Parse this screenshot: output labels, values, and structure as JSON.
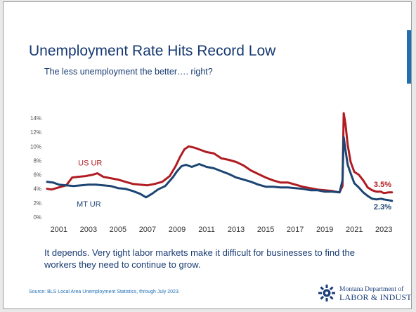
{
  "slide": {
    "title": "Unemployment Rate Hits Record Low",
    "subtitle": "The less unemployment the better…. right?",
    "body_text": "It depends. Very tight labor markets make it difficult for businesses to find the workers they need to continue to grow.",
    "source": "Source: BLS Local Area Unemployment Statistics, through July 2023.",
    "logo_line1": "Montana Department of",
    "logo_line2": "LABOR & INDUSTRY",
    "logo_icon": "gear-sunburst-icon",
    "colors": {
      "title": "#173a72",
      "accent": "#1f6fb5",
      "us_series": "#b01c22",
      "mt_series": "#1d4573"
    }
  },
  "chart_data": {
    "type": "line",
    "title": "",
    "xlabel": "",
    "ylabel": "",
    "xlim": [
      2000.2,
      2023.7
    ],
    "ylim": [
      0,
      15
    ],
    "y_ticks": [
      0,
      2,
      4,
      6,
      8,
      10,
      12,
      14
    ],
    "y_tick_labels": [
      "0%",
      "2%",
      "4%",
      "6%",
      "8%",
      "10%",
      "12%",
      "14%"
    ],
    "x_ticks": [
      2001,
      2003,
      2005,
      2007,
      2009,
      2011,
      2013,
      2015,
      2017,
      2019,
      2021,
      2023
    ],
    "x_tick_labels": [
      "2001",
      "2003",
      "2005",
      "2007",
      "2009",
      "2011",
      "2013",
      "2015",
      "2017",
      "2019",
      "2021",
      "2023"
    ],
    "grid": false,
    "series": [
      {
        "name": "US UR",
        "color": "#b01c22",
        "end_label": "3.5%",
        "points": [
          [
            2000.2,
            4.0
          ],
          [
            2000.5,
            3.9
          ],
          [
            2001.0,
            4.2
          ],
          [
            2001.5,
            4.5
          ],
          [
            2001.9,
            5.6
          ],
          [
            2002.3,
            5.7
          ],
          [
            2002.8,
            5.8
          ],
          [
            2003.3,
            6.0
          ],
          [
            2003.6,
            6.2
          ],
          [
            2004.0,
            5.7
          ],
          [
            2004.5,
            5.5
          ],
          [
            2005.0,
            5.3
          ],
          [
            2005.5,
            5.0
          ],
          [
            2006.0,
            4.7
          ],
          [
            2006.5,
            4.6
          ],
          [
            2007.0,
            4.5
          ],
          [
            2007.5,
            4.7
          ],
          [
            2008.0,
            5.0
          ],
          [
            2008.5,
            5.8
          ],
          [
            2008.9,
            7.2
          ],
          [
            2009.2,
            8.5
          ],
          [
            2009.5,
            9.6
          ],
          [
            2009.8,
            10.0
          ],
          [
            2010.2,
            9.8
          ],
          [
            2010.6,
            9.5
          ],
          [
            2011.0,
            9.2
          ],
          [
            2011.5,
            9.0
          ],
          [
            2012.0,
            8.3
          ],
          [
            2012.5,
            8.1
          ],
          [
            2013.0,
            7.8
          ],
          [
            2013.5,
            7.3
          ],
          [
            2014.0,
            6.6
          ],
          [
            2014.5,
            6.1
          ],
          [
            2015.0,
            5.6
          ],
          [
            2015.5,
            5.2
          ],
          [
            2016.0,
            4.9
          ],
          [
            2016.5,
            4.9
          ],
          [
            2017.0,
            4.6
          ],
          [
            2017.5,
            4.3
          ],
          [
            2018.0,
            4.1
          ],
          [
            2018.5,
            3.9
          ],
          [
            2019.0,
            3.8
          ],
          [
            2019.5,
            3.7
          ],
          [
            2020.0,
            3.5
          ],
          [
            2020.2,
            4.4
          ],
          [
            2020.28,
            14.7
          ],
          [
            2020.4,
            13.2
          ],
          [
            2020.55,
            10.2
          ],
          [
            2020.75,
            7.8
          ],
          [
            2021.0,
            6.4
          ],
          [
            2021.3,
            6.0
          ],
          [
            2021.6,
            5.2
          ],
          [
            2021.9,
            4.2
          ],
          [
            2022.2,
            3.8
          ],
          [
            2022.5,
            3.6
          ],
          [
            2022.8,
            3.6
          ],
          [
            2023.0,
            3.4
          ],
          [
            2023.3,
            3.5
          ],
          [
            2023.55,
            3.5
          ]
        ]
      },
      {
        "name": "MT UR",
        "color": "#1d4573",
        "end_label": "2.3%",
        "points": [
          [
            2000.2,
            5.0
          ],
          [
            2000.6,
            4.9
          ],
          [
            2001.0,
            4.6
          ],
          [
            2001.5,
            4.5
          ],
          [
            2002.0,
            4.4
          ],
          [
            2002.5,
            4.5
          ],
          [
            2003.0,
            4.6
          ],
          [
            2003.5,
            4.6
          ],
          [
            2004.0,
            4.5
          ],
          [
            2004.5,
            4.4
          ],
          [
            2005.0,
            4.1
          ],
          [
            2005.5,
            4.0
          ],
          [
            2006.0,
            3.7
          ],
          [
            2006.5,
            3.3
          ],
          [
            2006.9,
            2.8
          ],
          [
            2007.3,
            3.3
          ],
          [
            2007.7,
            3.9
          ],
          [
            2008.2,
            4.4
          ],
          [
            2008.7,
            5.6
          ],
          [
            2009.0,
            6.5
          ],
          [
            2009.3,
            7.2
          ],
          [
            2009.6,
            7.4
          ],
          [
            2010.0,
            7.1
          ],
          [
            2010.5,
            7.5
          ],
          [
            2011.0,
            7.1
          ],
          [
            2011.5,
            6.9
          ],
          [
            2012.0,
            6.5
          ],
          [
            2012.5,
            6.1
          ],
          [
            2013.0,
            5.6
          ],
          [
            2013.5,
            5.3
          ],
          [
            2014.0,
            5.0
          ],
          [
            2014.5,
            4.6
          ],
          [
            2015.0,
            4.3
          ],
          [
            2015.5,
            4.3
          ],
          [
            2016.0,
            4.2
          ],
          [
            2016.5,
            4.2
          ],
          [
            2017.0,
            4.1
          ],
          [
            2017.5,
            4.0
          ],
          [
            2018.0,
            3.8
          ],
          [
            2018.5,
            3.8
          ],
          [
            2019.0,
            3.6
          ],
          [
            2019.5,
            3.6
          ],
          [
            2020.0,
            3.5
          ],
          [
            2020.2,
            5.2
          ],
          [
            2020.28,
            11.3
          ],
          [
            2020.4,
            9.5
          ],
          [
            2020.55,
            7.4
          ],
          [
            2020.75,
            6.2
          ],
          [
            2021.0,
            4.8
          ],
          [
            2021.3,
            4.2
          ],
          [
            2021.6,
            3.5
          ],
          [
            2021.9,
            3.0
          ],
          [
            2022.2,
            2.6
          ],
          [
            2022.5,
            2.5
          ],
          [
            2022.8,
            2.6
          ],
          [
            2023.0,
            2.5
          ],
          [
            2023.3,
            2.4
          ],
          [
            2023.55,
            2.3
          ]
        ]
      }
    ]
  }
}
